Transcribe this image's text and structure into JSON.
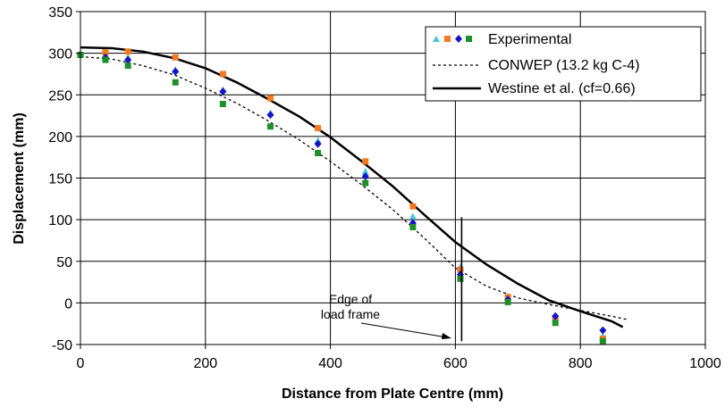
{
  "chart_data": {
    "type": "scatter",
    "xlabel": "Distance from Plate Centre (mm)",
    "ylabel": "Displacement (mm)",
    "xlim": [
      0,
      1000
    ],
    "ylim": [
      -50,
      350
    ],
    "xticks": [
      0,
      200,
      400,
      600,
      800,
      1000
    ],
    "yticks": [
      -50,
      0,
      50,
      100,
      150,
      200,
      250,
      300,
      350
    ],
    "grid": true,
    "legend_position": "top-right",
    "legend": {
      "experimental": "Experimental",
      "conwep": "CONWEP (13.2 kg C-4)",
      "westine": "Westine et al. (cf=0.66)"
    },
    "experimental_series": [
      {
        "marker": "triangle",
        "color": "#4fc3d9",
        "points": [
          [
            0,
            298
          ],
          [
            40,
            296
          ],
          [
            76,
            295
          ],
          [
            152,
            280
          ],
          [
            228,
            256
          ],
          [
            304,
            228
          ],
          [
            380,
            195
          ],
          [
            456,
            158
          ],
          [
            532,
            104
          ],
          [
            608,
            43
          ],
          [
            684,
            8
          ],
          [
            760,
            -15
          ],
          [
            836,
            -40
          ]
        ]
      },
      {
        "marker": "square",
        "color": "#f47920",
        "points": [
          [
            0,
            298
          ],
          [
            40,
            301
          ],
          [
            76,
            302
          ],
          [
            152,
            295
          ],
          [
            228,
            275
          ],
          [
            304,
            246
          ],
          [
            380,
            210
          ],
          [
            456,
            170
          ],
          [
            532,
            116
          ],
          [
            608,
            40
          ],
          [
            684,
            7
          ],
          [
            760,
            -18
          ],
          [
            836,
            -43
          ]
        ]
      },
      {
        "marker": "diamond",
        "color": "#1414c8",
        "points": [
          [
            0,
            298
          ],
          [
            40,
            295
          ],
          [
            76,
            292
          ],
          [
            152,
            278
          ],
          [
            228,
            254
          ],
          [
            304,
            226
          ],
          [
            380,
            191
          ],
          [
            456,
            152
          ],
          [
            532,
            96
          ],
          [
            608,
            34
          ],
          [
            684,
            4
          ],
          [
            760,
            -16
          ],
          [
            836,
            -33
          ]
        ]
      },
      {
        "marker": "square",
        "color": "#1f8f2a",
        "points": [
          [
            0,
            298
          ],
          [
            40,
            292
          ],
          [
            76,
            285
          ],
          [
            152,
            265
          ],
          [
            228,
            239
          ],
          [
            304,
            212
          ],
          [
            380,
            180
          ],
          [
            456,
            144
          ],
          [
            532,
            91
          ],
          [
            608,
            29
          ],
          [
            684,
            1
          ],
          [
            760,
            -24
          ],
          [
            836,
            -46
          ]
        ]
      }
    ],
    "lines": [
      {
        "name": "CONWEP (13.2 kg C-4)",
        "style": "dotted",
        "x": [
          0,
          50,
          100,
          150,
          200,
          250,
          300,
          350,
          400,
          450,
          500,
          550,
          600,
          650,
          700,
          750,
          800,
          850,
          875
        ],
        "y": [
          296,
          293,
          285,
          274,
          258,
          240,
          219,
          196,
          170,
          142,
          112,
          78,
          42,
          20,
          6,
          -2,
          -9,
          -16,
          -20
        ]
      },
      {
        "name": "Westine et al. (cf=0.66)",
        "style": "solid",
        "x": [
          0,
          50,
          100,
          150,
          200,
          250,
          300,
          350,
          400,
          450,
          500,
          550,
          600,
          650,
          700,
          750,
          800,
          850,
          868
        ],
        "y": [
          307,
          306,
          302,
          294,
          282,
          265,
          245,
          224,
          199,
          170,
          140,
          106,
          73,
          46,
          23,
          3,
          -10,
          -22,
          -29
        ]
      }
    ],
    "annotation": {
      "lines": [
        "Edge of",
        "load frame"
      ],
      "marker_x": 610
    }
  }
}
